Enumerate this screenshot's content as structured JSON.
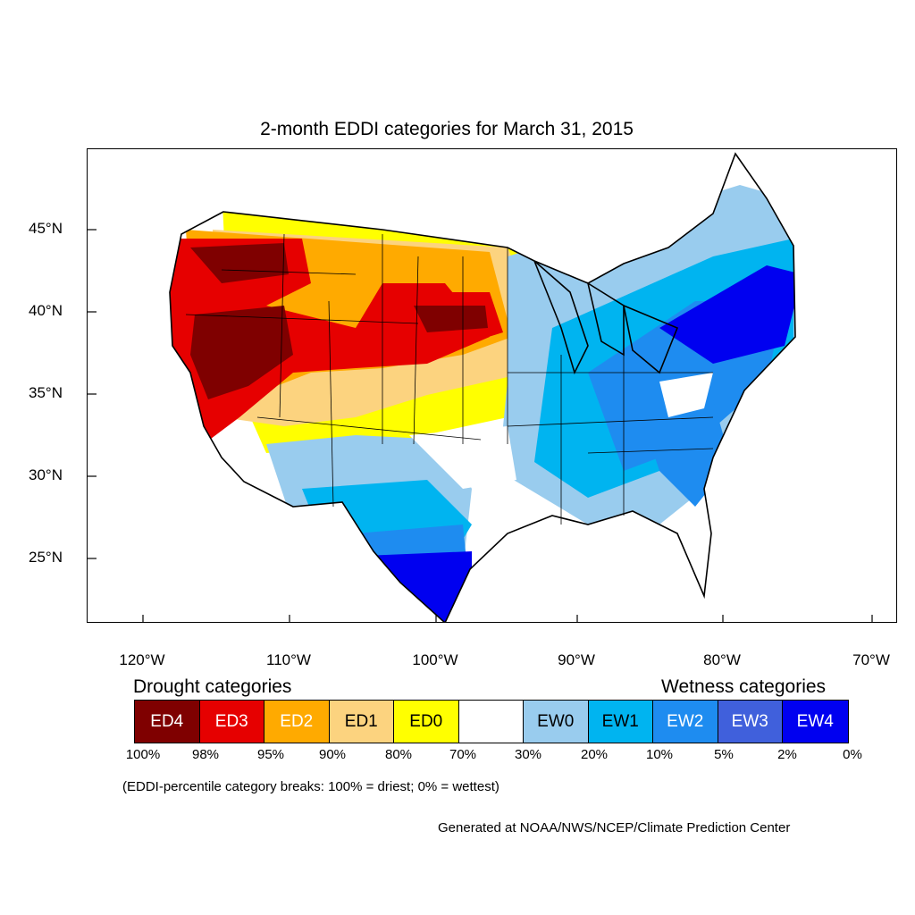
{
  "title": "2-month EDDI categories for March 31, 2015",
  "map": {
    "lat_labels": [
      "45°N",
      "40°N",
      "35°N",
      "30°N",
      "25°N"
    ],
    "lon_labels": [
      "120°W",
      "110°W",
      "100°W",
      "90°W",
      "80°W",
      "70°W"
    ]
  },
  "legend": {
    "drought_heading": "Drought categories",
    "wetness_heading": "Wetness categories",
    "categories": [
      {
        "label": "ED4",
        "color": "#7f0000",
        "text_color": "#ffffff"
      },
      {
        "label": "ED3",
        "color": "#e60000",
        "text_color": "#ffffff"
      },
      {
        "label": "ED2",
        "color": "#ffaa00",
        "text_color": "#ffffff"
      },
      {
        "label": "ED1",
        "color": "#fcd37f",
        "text_color": "#000000"
      },
      {
        "label": "ED0",
        "color": "#ffff00",
        "text_color": "#000000"
      },
      {
        "label": "",
        "color": "#ffffff",
        "text_color": "#000000"
      },
      {
        "label": "EW0",
        "color": "#99ccee",
        "text_color": "#000000"
      },
      {
        "label": "EW1",
        "color": "#00b4f0",
        "text_color": "#000000"
      },
      {
        "label": "EW2",
        "color": "#1e8cf0",
        "text_color": "#ffffff"
      },
      {
        "label": "EW3",
        "color": "#4060dc",
        "text_color": "#ffffff"
      },
      {
        "label": "EW4",
        "color": "#0000f0",
        "text_color": "#ffffff"
      }
    ],
    "percent_breaks": [
      "100%",
      "98%",
      "95%",
      "90%",
      "80%",
      "70%",
      "30%",
      "20%",
      "10%",
      "5%",
      "2%",
      "0%"
    ]
  },
  "note": "(EDDI-percentile category breaks: 100% = driest; 0% = wettest)",
  "credit": "Generated at NOAA/NWS/NCEP/Climate Prediction Center"
}
